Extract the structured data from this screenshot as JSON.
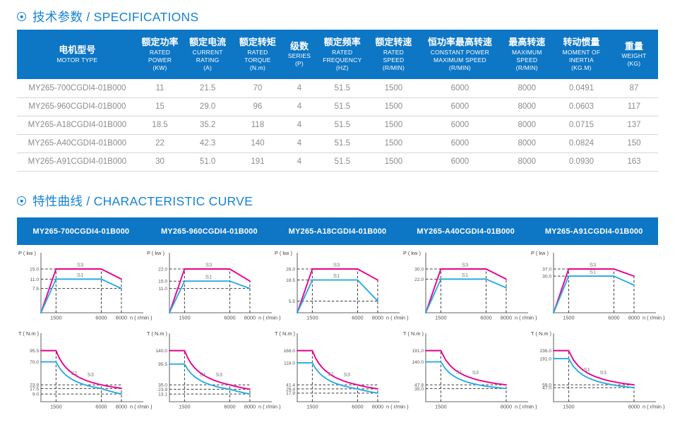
{
  "colors": {
    "primary_blue": "#0d76c5",
    "title_blue": "#1583d6",
    "curve_s3_magenta": "#ec008c",
    "curve_s1_cyan": "#2aabe4",
    "row_text_gray": "#8c8c8c",
    "dash_gray": "#3a3a3a"
  },
  "sections": {
    "specs": {
      "title": "技术参数 / SPECIFICATIONS"
    },
    "curve": {
      "title": "特性曲线 / CHARACTERISTIC CURVE"
    }
  },
  "spec_table": {
    "columns": [
      {
        "cn": "电机型号",
        "en": "MOTOR TYPE",
        "width": "18.8%"
      },
      {
        "cn": "额定功率",
        "en": "RATED\nPOWER\n(KW)",
        "width": "7.0%"
      },
      {
        "cn": "额定电流",
        "en": "CURRENT\nRATING\n(A)",
        "width": "7.9%"
      },
      {
        "cn": "额定转矩",
        "en": "RATED\nTORQUE\n(N.m)",
        "width": "7.7%"
      },
      {
        "cn": "级数",
        "en": "SERIES\n(P)",
        "width": "5.3%"
      },
      {
        "cn": "额定频率",
        "en": "RATED\nFREQUENCY\n(HZ)",
        "width": "8.1%"
      },
      {
        "cn": "额定转速",
        "en": "RATED\nSPEED\n(R/MIN)",
        "width": "7.9%"
      },
      {
        "cn": "恒功率最高转速",
        "en": "CONSTANT POWER\nMAXIMUM SPEED\n(R/MIN)",
        "width": "12.8%"
      },
      {
        "cn": "最高转速",
        "en": "MAXIMUM\nSPEED\n(R/MIN)",
        "width": "8.1%"
      },
      {
        "cn": "转动惯量",
        "en": "MOMENT OF\nINERTIA\n(KG.M)",
        "width": "8.9%"
      },
      {
        "cn": "重量",
        "en": "WEIGHT\n(KG)",
        "width": "7.5%"
      }
    ],
    "rows": [
      [
        "MY265-700CGDI4-01B000",
        "11",
        "21.5",
        "70",
        "4",
        "51.5",
        "1500",
        "6000",
        "8000",
        "0.0491",
        "87"
      ],
      [
        "MY265-960CGDI4-01B000",
        "15",
        "29.0",
        "96",
        "4",
        "51.5",
        "1500",
        "6000",
        "8000",
        "0.0603",
        "117"
      ],
      [
        "MY265-A18CGDI4-01B000",
        "18.5",
        "35.2",
        "118",
        "4",
        "51.5",
        "1500",
        "6000",
        "8000",
        "0.0715",
        "137"
      ],
      [
        "MY265-A40CGDI4-01B000",
        "22",
        "42.3",
        "140",
        "4",
        "51.5",
        "1500",
        "6000",
        "8000",
        "0.0824",
        "150"
      ],
      [
        "MY265-A91CGDI4-01B000",
        "30",
        "51.0",
        "191",
        "4",
        "51.5",
        "1500",
        "6000",
        "8000",
        "0.0930",
        "163"
      ]
    ]
  },
  "chart_data": [
    {
      "model": "MY265-700CGDI4-01B000",
      "power": {
        "type": "line",
        "kind": "power",
        "ylabel": "P ( kw )",
        "xlabel": "n ( r/min )",
        "xticks": [
          1500,
          6000,
          8000
        ],
        "yticks": [
          "15.0",
          "11.0",
          "7.5"
        ],
        "series": [
          {
            "name": "S3",
            "points": [
              [
                0,
                0
              ],
              [
                1500,
                15.0
              ],
              [
                6000,
                15.0
              ],
              [
                8000,
                11.0
              ]
            ]
          },
          {
            "name": "S1",
            "points": [
              [
                0,
                0
              ],
              [
                1500,
                11.0
              ],
              [
                6000,
                11.0
              ],
              [
                8000,
                7.5
              ]
            ]
          }
        ]
      },
      "torque": {
        "type": "line",
        "kind": "torque",
        "ylabel": "T ( N.m )",
        "xlabel": "n ( r/min )",
        "xticks": [
          1500,
          6000,
          8000
        ],
        "yticks": [
          "95.5",
          "70.0",
          "23.9",
          "17.5",
          "9.0"
        ],
        "series": [
          {
            "name": "S3",
            "points": [
              [
                0,
                95.5
              ],
              [
                1500,
                95.5
              ],
              [
                6000,
                23.9
              ],
              [
                8000,
                18.0
              ]
            ]
          },
          {
            "name": "S1",
            "points": [
              [
                0,
                70.0
              ],
              [
                1500,
                70.0
              ],
              [
                6000,
                17.5
              ],
              [
                8000,
                9.0
              ]
            ]
          }
        ]
      }
    },
    {
      "model": "MY265-960CGDI4-01B000",
      "power": {
        "type": "line",
        "kind": "power",
        "ylabel": "P ( kw )",
        "xlabel": "n ( r/min )",
        "xticks": [
          1500,
          6000,
          8000
        ],
        "yticks": [
          "22.0",
          "15.0",
          "11.0"
        ],
        "series": [
          {
            "name": "S3",
            "points": [
              [
                0,
                0
              ],
              [
                1500,
                22.0
              ],
              [
                6000,
                22.0
              ],
              [
                8000,
                15.0
              ]
            ]
          },
          {
            "name": "S1",
            "points": [
              [
                0,
                0
              ],
              [
                1500,
                15.0
              ],
              [
                6000,
                15.0
              ],
              [
                8000,
                11.0
              ]
            ]
          }
        ]
      },
      "torque": {
        "type": "line",
        "kind": "torque",
        "ylabel": "T ( N.m )",
        "xlabel": "n ( r/min )",
        "xticks": [
          1500,
          6000,
          8000
        ],
        "yticks": [
          "140.0",
          "95.5",
          "35.0",
          "23.9",
          "13.1"
        ],
        "series": [
          {
            "name": "S3",
            "points": [
              [
                0,
                140.0
              ],
              [
                1500,
                140.0
              ],
              [
                6000,
                35.0
              ],
              [
                8000,
                24.0
              ]
            ]
          },
          {
            "name": "S1",
            "points": [
              [
                0,
                95.5
              ],
              [
                1500,
                95.5
              ],
              [
                6000,
                23.9
              ],
              [
                8000,
                13.1
              ]
            ]
          }
        ]
      }
    },
    {
      "model": "MY265-A18CGDI4-01B000",
      "power": {
        "type": "line",
        "kind": "power",
        "ylabel": "P ( kw )",
        "xlabel": "n ( r/min )",
        "xticks": [
          1500,
          6000,
          8000
        ],
        "yticks": [
          "26.0",
          "18.5",
          "5.5"
        ],
        "series": [
          {
            "name": "S3",
            "points": [
              [
                0,
                0
              ],
              [
                1500,
                26.0
              ],
              [
                6000,
                26.0
              ],
              [
                8000,
                18.5
              ]
            ]
          },
          {
            "name": "S1",
            "points": [
              [
                0,
                0
              ],
              [
                1500,
                18.5
              ],
              [
                6000,
                18.5
              ],
              [
                8000,
                5.5
              ]
            ]
          }
        ]
      },
      "torque": {
        "type": "line",
        "kind": "torque",
        "ylabel": "T ( N.m )",
        "xlabel": "n ( r/min )",
        "xticks": [
          1500,
          6000,
          8000
        ],
        "yticks": [
          "166.0",
          "118.0",
          "41.4",
          "29.4",
          "17.9"
        ],
        "series": [
          {
            "name": "S3",
            "points": [
              [
                0,
                166.0
              ],
              [
                1500,
                166.0
              ],
              [
                6000,
                41.4
              ],
              [
                8000,
                29.5
              ]
            ]
          },
          {
            "name": "S1",
            "points": [
              [
                0,
                118.0
              ],
              [
                1500,
                118.0
              ],
              [
                6000,
                29.4
              ],
              [
                8000,
                17.9
              ]
            ]
          }
        ]
      }
    },
    {
      "model": "MY265-A40CGDI4-01B000",
      "power": {
        "type": "line",
        "kind": "power",
        "ylabel": "P ( kw )",
        "xlabel": "n ( r/min )",
        "xticks": [
          1500,
          6000,
          8000
        ],
        "yticks": [
          "30.0",
          "22.0"
        ],
        "series": [
          {
            "name": "S3",
            "points": [
              [
                0,
                0
              ],
              [
                1500,
                30.0
              ],
              [
                6000,
                30.0
              ],
              [
                8000,
                22.0
              ]
            ]
          },
          {
            "name": "S1",
            "points": [
              [
                0,
                0
              ],
              [
                1500,
                22.0
              ],
              [
                6000,
                22.0
              ],
              [
                8000,
                15.5
              ]
            ]
          }
        ]
      },
      "torque": {
        "type": "line",
        "kind": "torque",
        "ylabel": "T ( N.m )",
        "xlabel": "n ( r/min )",
        "xticks": [
          1500,
          8000
        ],
        "yticks": [
          "191.0",
          "140.0",
          "47.8",
          "35.0"
        ],
        "series": [
          {
            "name": "S3",
            "points": [
              [
                0,
                191.0
              ],
              [
                1500,
                191.0
              ],
              [
                8000,
                47.8
              ]
            ]
          },
          {
            "name": "S1",
            "points": [
              [
                0,
                140.0
              ],
              [
                1500,
                140.0
              ],
              [
                8000,
                35.0
              ]
            ]
          }
        ]
      }
    },
    {
      "model": "MY265-A91CGDI4-01B000",
      "power": {
        "type": "line",
        "kind": "power",
        "ylabel": "P ( kw )",
        "xlabel": "n ( r/min )",
        "xticks": [
          1500,
          6000,
          8000
        ],
        "yticks": [
          "37.0",
          "30.0"
        ],
        "series": [
          {
            "name": "S3",
            "points": [
              [
                0,
                0
              ],
              [
                1500,
                37.0
              ],
              [
                6000,
                37.0
              ],
              [
                8000,
                30.0
              ]
            ]
          },
          {
            "name": "S1",
            "points": [
              [
                0,
                0
              ],
              [
                1500,
                30.0
              ],
              [
                6000,
                30.0
              ],
              [
                8000,
                21.5
              ]
            ]
          }
        ]
      },
      "torque": {
        "type": "line",
        "kind": "torque",
        "ylabel": "T ( N.m )",
        "xlabel": "n ( r/min )",
        "xticks": [
          1500,
          8000
        ],
        "yticks": [
          "236.0",
          "191.0",
          "59.0",
          "47.0"
        ],
        "series": [
          {
            "name": "S3",
            "points": [
              [
                0,
                236.0
              ],
              [
                1500,
                236.0
              ],
              [
                8000,
                59.0
              ]
            ]
          },
          {
            "name": "S1",
            "points": [
              [
                0,
                191.0
              ],
              [
                1500,
                191.0
              ],
              [
                8000,
                47.0
              ]
            ]
          }
        ]
      }
    }
  ]
}
